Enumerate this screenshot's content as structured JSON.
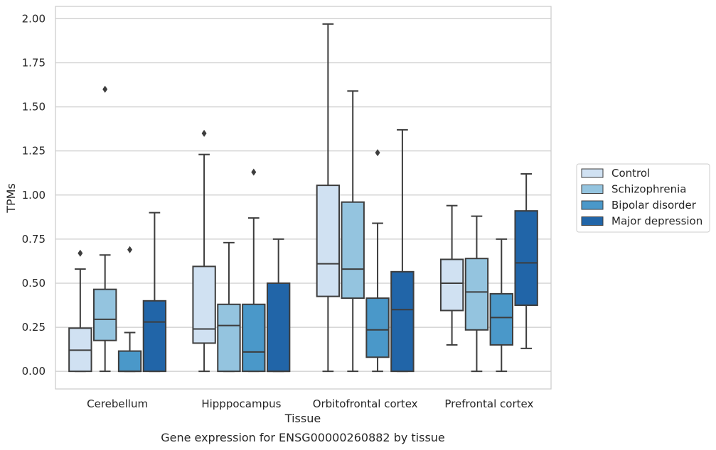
{
  "chart_data": {
    "type": "box",
    "xlabel": "Tissue",
    "ylabel": "TPMs",
    "caption": "Gene expression for ENSG00000260882 by tissue",
    "ylim": [
      -0.1,
      2.07
    ],
    "yticks": [
      0.0,
      0.25,
      0.5,
      0.75,
      1.0,
      1.25,
      1.5,
      1.75,
      2.0
    ],
    "ytick_labels": [
      "0.00",
      "0.25",
      "0.50",
      "0.75",
      "1.00",
      "1.25",
      "1.50",
      "1.75",
      "2.00"
    ],
    "grid": "horizontal",
    "legend_position": "right",
    "categories": [
      "Cerebellum",
      "Hipppocampus",
      "Orbitofrontal cortex",
      "Prefrontal cortex"
    ],
    "series": [
      {
        "name": "Control",
        "color": "#d0e1f2",
        "boxes": [
          {
            "whislo": 0.0,
            "q1": 0.0,
            "med": 0.12,
            "q3": 0.245,
            "whishi": 0.58,
            "fliers": [
              0.67
            ]
          },
          {
            "whislo": 0.0,
            "q1": 0.16,
            "med": 0.24,
            "q3": 0.595,
            "whishi": 1.23,
            "fliers": [
              1.35
            ]
          },
          {
            "whislo": 0.0,
            "q1": 0.425,
            "med": 0.61,
            "q3": 1.055,
            "whishi": 1.97,
            "fliers": []
          },
          {
            "whislo": 0.15,
            "q1": 0.345,
            "med": 0.5,
            "q3": 0.635,
            "whishi": 0.94,
            "fliers": []
          }
        ]
      },
      {
        "name": "Schizophrenia",
        "color": "#94c4df",
        "boxes": [
          {
            "whislo": 0.0,
            "q1": 0.175,
            "med": 0.295,
            "q3": 0.465,
            "whishi": 0.66,
            "fliers": [
              1.6
            ]
          },
          {
            "whislo": 0.0,
            "q1": 0.0,
            "med": 0.26,
            "q3": 0.38,
            "whishi": 0.73,
            "fliers": []
          },
          {
            "whislo": 0.0,
            "q1": 0.415,
            "med": 0.58,
            "q3": 0.96,
            "whishi": 1.59,
            "fliers": []
          },
          {
            "whislo": 0.0,
            "q1": 0.235,
            "med": 0.45,
            "q3": 0.64,
            "whishi": 0.88,
            "fliers": []
          }
        ]
      },
      {
        "name": "Bipolar disorder",
        "color": "#4a98c9",
        "boxes": [
          {
            "whislo": 0.0,
            "q1": 0.0,
            "med": 0.0,
            "q3": 0.115,
            "whishi": 0.22,
            "fliers": [
              0.69
            ]
          },
          {
            "whislo": 0.0,
            "q1": 0.0,
            "med": 0.11,
            "q3": 0.38,
            "whishi": 0.87,
            "fliers": [
              1.13
            ]
          },
          {
            "whislo": 0.0,
            "q1": 0.08,
            "med": 0.235,
            "q3": 0.415,
            "whishi": 0.84,
            "fliers": [
              1.24
            ]
          },
          {
            "whislo": 0.0,
            "q1": 0.15,
            "med": 0.305,
            "q3": 0.44,
            "whishi": 0.75,
            "fliers": []
          }
        ]
      },
      {
        "name": "Major depression",
        "color": "#2165a8",
        "boxes": [
          {
            "whislo": 0.0,
            "q1": 0.0,
            "med": 0.28,
            "q3": 0.4,
            "whishi": 0.9,
            "fliers": []
          },
          {
            "whislo": 0.0,
            "q1": 0.0,
            "med": 0.0,
            "q3": 0.5,
            "whishi": 0.75,
            "fliers": []
          },
          {
            "whislo": 0.0,
            "q1": 0.0,
            "med": 0.35,
            "q3": 0.565,
            "whishi": 1.37,
            "fliers": []
          },
          {
            "whislo": 0.13,
            "q1": 0.375,
            "med": 0.615,
            "q3": 0.91,
            "whishi": 1.12,
            "fliers": []
          }
        ]
      }
    ]
  }
}
